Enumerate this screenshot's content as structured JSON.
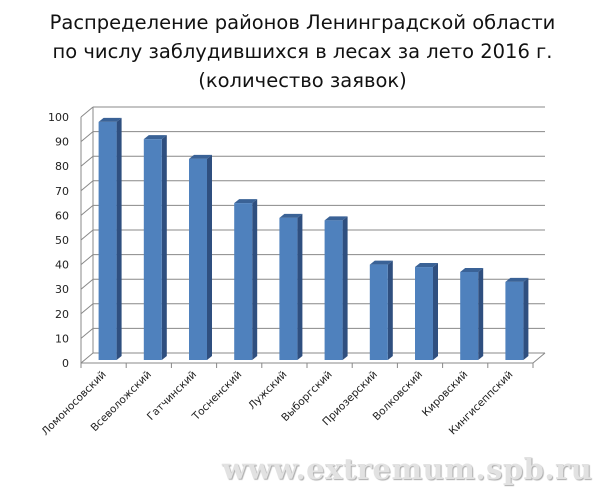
{
  "chart_data": {
    "type": "bar",
    "title_lines": [
      "Распределение районов Ленинградской области",
      "по числу заблудившихся в лесах за лето 2016 г.",
      "(количество заявок)"
    ],
    "categories": [
      "Ломоносовский",
      "Всеволожский",
      "Гатчинский",
      "Тосненский",
      "Лужский",
      "Выборгский",
      "Приозерский",
      "Волковский",
      "Кировский",
      "Кингисеппский"
    ],
    "values": [
      98,
      91,
      83,
      65,
      59,
      58,
      40,
      39,
      37,
      33
    ],
    "ylim": [
      0,
      100
    ],
    "yticks": [
      0,
      10,
      20,
      30,
      40,
      50,
      60,
      70,
      80,
      90,
      100
    ],
    "grid": true,
    "bar_color": "#4F81BD",
    "three_d": true
  },
  "watermark": "www.extremum.spb.ru"
}
